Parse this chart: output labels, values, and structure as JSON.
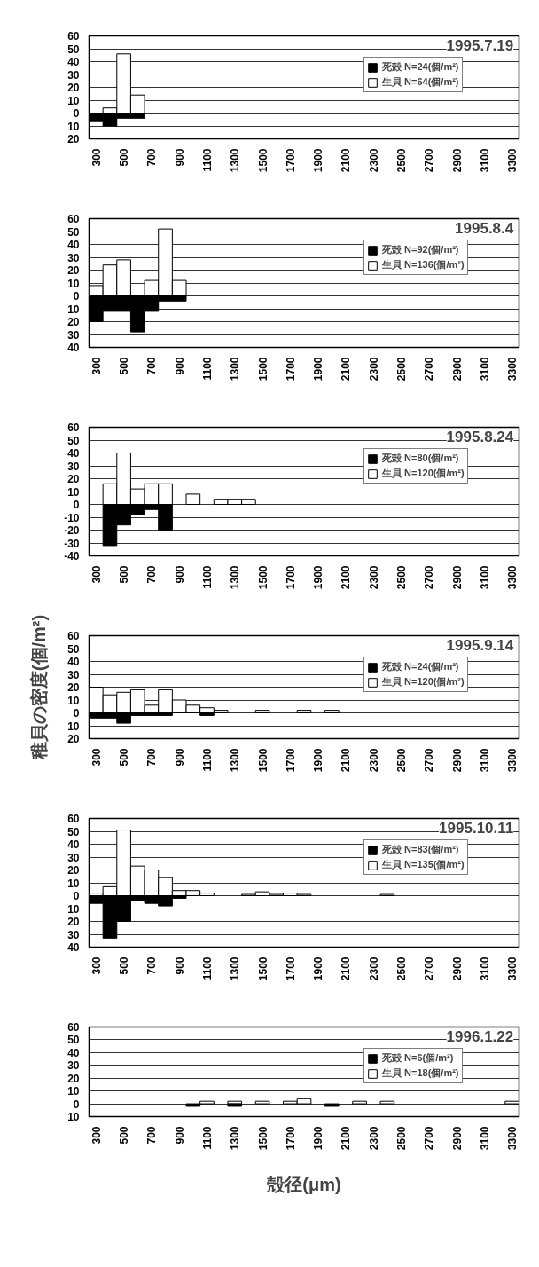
{
  "chart_data": [
    {
      "type": "bar",
      "title": "1995.7.19",
      "categories": [
        "300",
        null,
        "500",
        null,
        "700",
        null,
        "900",
        null,
        "1100",
        null,
        "1300",
        null,
        "1500",
        null,
        "1700",
        null,
        "1900",
        null,
        "2100",
        null,
        "2300",
        null,
        "2500",
        null,
        "2700",
        null,
        "2900",
        null,
        "3100",
        null,
        "3300"
      ],
      "ylim": [
        -20,
        60
      ],
      "yticks": [
        {
          "value": -20,
          "label": "20"
        },
        {
          "value": -10,
          "label": "10"
        },
        0,
        10,
        20,
        30,
        40,
        50,
        60
      ],
      "grid": "y",
      "legend": "top right",
      "series": [
        {
          "name": "生貝 N=64(個/m²)",
          "color": "#ffffff",
          "values": [
            null,
            4,
            46,
            14,
            null,
            null,
            null,
            null,
            null,
            null,
            null,
            null,
            null,
            null,
            null,
            null,
            null,
            null,
            null,
            null,
            null,
            null,
            null,
            null,
            null,
            null,
            null,
            null,
            null,
            null,
            null
          ]
        },
        {
          "name": "死殻 N=24(個/m²)",
          "color": "#000000",
          "values": [
            -6,
            -10,
            -4,
            -4,
            null,
            null,
            null,
            null,
            null,
            null,
            null,
            null,
            null,
            null,
            null,
            null,
            null,
            null,
            null,
            null,
            null,
            null,
            null,
            null,
            null,
            null,
            null,
            null,
            null,
            null,
            null
          ]
        }
      ]
    },
    {
      "type": "bar",
      "title": "1995.8.4",
      "categories": [
        "300",
        null,
        "500",
        null,
        "700",
        null,
        "900",
        null,
        "1100",
        null,
        "1300",
        null,
        "1500",
        null,
        "1700",
        null,
        "1900",
        null,
        "2100",
        null,
        "2300",
        null,
        "2500",
        null,
        "2700",
        null,
        "2900",
        null,
        "3100",
        null,
        "3300"
      ],
      "ylim": [
        -40,
        60
      ],
      "yticks": [
        {
          "value": -40,
          "label": "40"
        },
        {
          "value": -30,
          "label": "30"
        },
        {
          "value": -20,
          "label": "20"
        },
        {
          "value": -10,
          "label": "10"
        },
        0,
        10,
        20,
        30,
        40,
        50,
        60
      ],
      "grid": "y",
      "legend": "top right",
      "series": [
        {
          "name": "生貝 N=136(個/m²)",
          "color": "#ffffff",
          "values": [
            8,
            24,
            28,
            null,
            12,
            52,
            12,
            null,
            null,
            null,
            null,
            null,
            null,
            null,
            null,
            null,
            null,
            null,
            null,
            null,
            null,
            null,
            null,
            null,
            null,
            null,
            null,
            null,
            null,
            null,
            null
          ]
        },
        {
          "name": "死殻 N=92(個/m²)",
          "color": "#000000",
          "values": [
            -20,
            -12,
            -12,
            -28,
            -12,
            -4,
            -4,
            null,
            null,
            null,
            null,
            null,
            null,
            null,
            null,
            null,
            null,
            null,
            null,
            null,
            null,
            null,
            null,
            null,
            null,
            null,
            null,
            null,
            null,
            null,
            null
          ]
        }
      ]
    },
    {
      "type": "bar",
      "title": "1995.8.24",
      "categories": [
        "300",
        null,
        "500",
        null,
        "700",
        null,
        "900",
        null,
        "1100",
        null,
        "1300",
        null,
        "1500",
        null,
        "1700",
        null,
        "1900",
        null,
        "2100",
        null,
        "2300",
        null,
        "2500",
        null,
        "2700",
        null,
        "2900",
        null,
        "3100",
        null,
        "3300"
      ],
      "ylim": [
        -40,
        60
      ],
      "yticks": [
        -40,
        -30,
        -20,
        -10,
        0,
        10,
        20,
        30,
        40,
        50,
        60
      ],
      "grid": "y",
      "legend": "top right",
      "series": [
        {
          "name": "生貝 N=120(個/m²)",
          "color": "#ffffff",
          "values": [
            null,
            16,
            40,
            12,
            16,
            16,
            null,
            8,
            null,
            4,
            4,
            4,
            null,
            null,
            null,
            null,
            null,
            null,
            null,
            null,
            null,
            null,
            null,
            null,
            null,
            null,
            null,
            null,
            null,
            null,
            null
          ]
        },
        {
          "name": "死殻 N=80(個/m²)",
          "color": "#000000",
          "values": [
            null,
            -32,
            -16,
            -8,
            -4,
            -20,
            null,
            null,
            null,
            null,
            null,
            null,
            null,
            null,
            null,
            null,
            null,
            null,
            null,
            null,
            null,
            null,
            null,
            null,
            null,
            null,
            null,
            null,
            null,
            null,
            null
          ]
        }
      ]
    },
    {
      "type": "bar",
      "title": "1995.9.14",
      "ylabel": "稚貝の密度(個/m²)",
      "categories": [
        "300",
        null,
        "500",
        null,
        "700",
        null,
        "900",
        null,
        "1100",
        null,
        "1300",
        null,
        "1500",
        null,
        "1700",
        null,
        "1900",
        null,
        "2100",
        null,
        "2300",
        null,
        "2500",
        null,
        "2700",
        null,
        "2900",
        null,
        "3100",
        null,
        "3300"
      ],
      "ylim": [
        -20,
        60
      ],
      "yticks": [
        {
          "value": -20,
          "label": "20"
        },
        {
          "value": -10,
          "label": "10"
        },
        0,
        10,
        20,
        30,
        40,
        50,
        60
      ],
      "grid": "y",
      "legend": "top right",
      "series": [
        {
          "name": "生貝 N=120(個/m²)",
          "color": "#ffffff",
          "values": [
            20,
            14,
            16,
            18,
            6,
            18,
            10,
            6,
            4,
            2,
            null,
            null,
            2,
            null,
            null,
            2,
            null,
            2,
            null,
            null,
            null,
            null,
            null,
            null,
            null,
            null,
            null,
            null,
            null,
            null,
            null
          ]
        },
        {
          "name": "死殻 N=24(個/m²)",
          "color": "#000000",
          "values": [
            -4,
            -4,
            -8,
            -2,
            -2,
            -2,
            null,
            null,
            -2,
            null,
            null,
            null,
            null,
            null,
            null,
            null,
            null,
            null,
            null,
            null,
            null,
            null,
            null,
            null,
            null,
            null,
            null,
            null,
            null,
            null,
            null
          ]
        }
      ]
    },
    {
      "type": "bar",
      "title": "1995.10.11",
      "categories": [
        "300",
        null,
        "500",
        null,
        "700",
        null,
        "900",
        null,
        "1100",
        null,
        "1300",
        null,
        "1500",
        null,
        "1700",
        null,
        "1900",
        null,
        "2100",
        null,
        "2300",
        null,
        "2500",
        null,
        "2700",
        null,
        "2900",
        null,
        "3100",
        null,
        "3300"
      ],
      "ylim": [
        -40,
        60
      ],
      "yticks": [
        {
          "value": -40,
          "label": "40"
        },
        {
          "value": -30,
          "label": "30"
        },
        {
          "value": -20,
          "label": "20"
        },
        {
          "value": -10,
          "label": "10"
        },
        0,
        10,
        20,
        30,
        40,
        50,
        60
      ],
      "grid": "y",
      "legend": "top right",
      "series": [
        {
          "name": "生貝 N=135(個/m²)",
          "color": "#ffffff",
          "values": [
            2,
            7,
            51,
            23,
            20,
            14,
            4,
            4,
            2,
            null,
            null,
            1,
            3,
            1,
            2,
            1,
            null,
            null,
            null,
            null,
            null,
            1,
            null,
            null,
            null,
            null,
            null,
            null,
            null,
            null,
            null
          ]
        },
        {
          "name": "死殻 N=83(個/m²)",
          "color": "#000000",
          "values": [
            -6,
            -33,
            -20,
            -4,
            -6,
            -8,
            -2,
            null,
            null,
            null,
            null,
            null,
            null,
            null,
            null,
            null,
            null,
            null,
            null,
            null,
            null,
            null,
            null,
            null,
            null,
            null,
            null,
            null,
            null,
            null,
            null
          ]
        }
      ]
    },
    {
      "type": "bar",
      "title": "1996.1.22",
      "xlabel": "殻径(μm)",
      "categories": [
        "300",
        null,
        "500",
        null,
        "700",
        null,
        "900",
        null,
        "1100",
        null,
        "1300",
        null,
        "1500",
        null,
        "1700",
        null,
        "1900",
        null,
        "2100",
        null,
        "2300",
        null,
        "2500",
        null,
        "2700",
        null,
        "2900",
        null,
        "3100",
        null,
        "3300"
      ],
      "ylim": [
        -10,
        60
      ],
      "yticks": [
        {
          "value": -10,
          "label": "10"
        },
        0,
        10,
        20,
        30,
        40,
        50,
        60
      ],
      "grid": "y",
      "legend": "top right",
      "series": [
        {
          "name": "生貝 N=18(個/m²)",
          "color": "#ffffff",
          "values": [
            null,
            null,
            null,
            null,
            null,
            null,
            null,
            null,
            2,
            null,
            2,
            null,
            2,
            null,
            2,
            4,
            null,
            null,
            null,
            2,
            null,
            2,
            null,
            null,
            null,
            null,
            null,
            null,
            null,
            null,
            2
          ]
        },
        {
          "name": "死殻 N=6(個/m²)",
          "color": "#000000",
          "values": [
            null,
            null,
            null,
            null,
            null,
            null,
            null,
            -2,
            null,
            null,
            -2,
            null,
            null,
            null,
            null,
            null,
            null,
            -2,
            null,
            null,
            null,
            null,
            null,
            null,
            null,
            null,
            null,
            null,
            null,
            null,
            null
          ]
        }
      ]
    }
  ]
}
